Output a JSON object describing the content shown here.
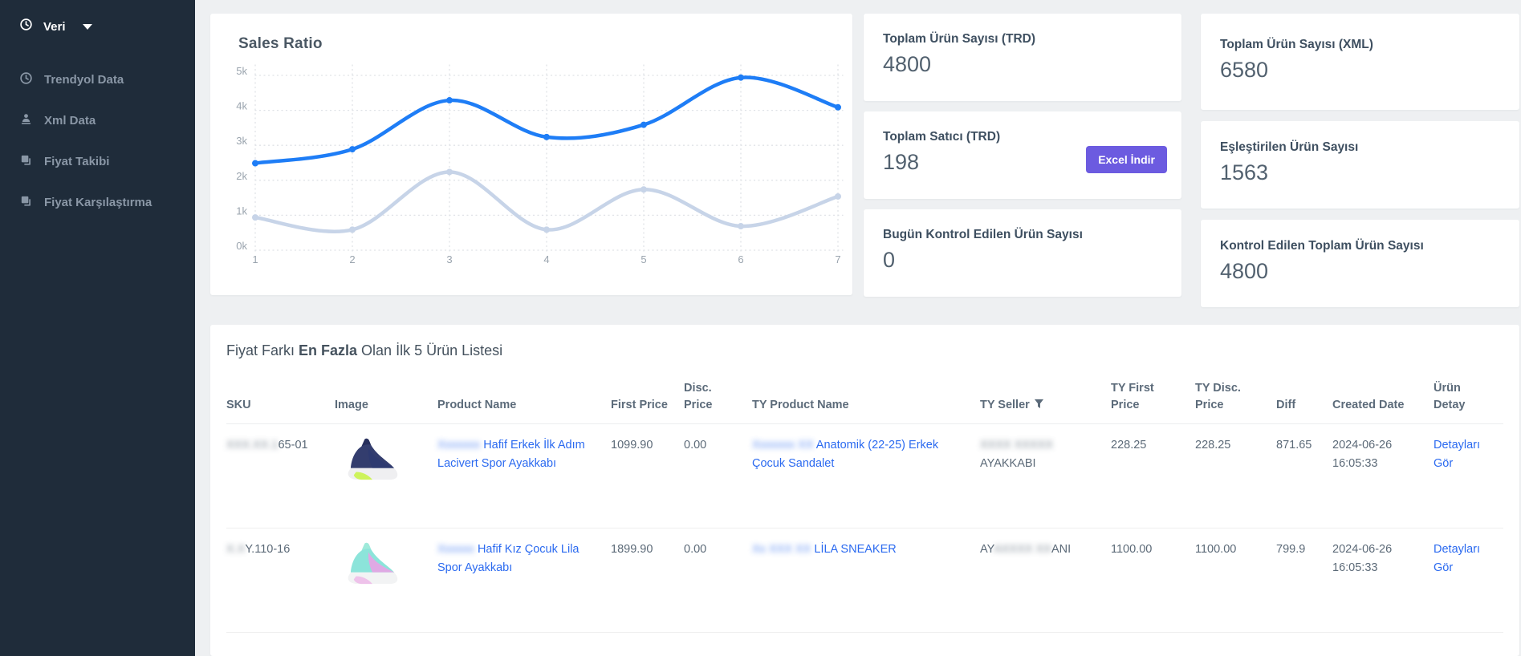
{
  "colors": {
    "sidebar_bg": "#1f2c3a",
    "accent_button": "#6c5be0",
    "link": "#2b6af0",
    "chart_line_primary": "#1e7df6",
    "chart_line_secondary": "#c7d4e8"
  },
  "sidebar": {
    "header_label": "Veri",
    "items": [
      {
        "label": "Trendyol Data",
        "icon": "clock-icon"
      },
      {
        "label": "Xml Data",
        "icon": "user-icon"
      },
      {
        "label": "Fiyat Takibi",
        "icon": "copy-icon"
      },
      {
        "label": "Fiyat Karşılaştırma",
        "icon": "copy-icon"
      }
    ]
  },
  "chart_data": {
    "type": "line",
    "title": "Sales Ratio",
    "x": [
      1,
      2,
      3,
      4,
      5,
      6,
      7
    ],
    "xlabel": "",
    "ylabel": "",
    "ylim": [
      0,
      5000
    ],
    "ytick_labels": [
      "0k",
      "1k",
      "2k",
      "3k",
      "4k",
      "5k"
    ],
    "grid": "dotted",
    "legend": "none",
    "series": [
      {
        "name": "series-1",
        "color": "#1e7df6",
        "values": [
          2350,
          2750,
          4150,
          3100,
          3450,
          4800,
          3950
        ]
      },
      {
        "name": "series-2",
        "color": "#c7d4e8",
        "values": [
          800,
          450,
          2100,
          450,
          1600,
          550,
          1400
        ]
      }
    ]
  },
  "stats": [
    {
      "label": "Toplam Ürün Sayısı (TRD)",
      "value": "4800"
    },
    {
      "label": "Toplam Ürün Sayısı (XML)",
      "value": "6580"
    },
    {
      "label": "Toplam Satıcı (TRD)",
      "value": "198",
      "button_label": "Excel İndir"
    },
    {
      "label": "Eşleştirilen Ürün Sayısı",
      "value": "1563"
    },
    {
      "label": "Bugün Kontrol Edilen Ürün Sayısı",
      "value": "0"
    },
    {
      "label": "Kontrol Edilen Toplam Ürün Sayısı",
      "value": "4800"
    }
  ],
  "table": {
    "title_prefix": "Fiyat Farkı ",
    "title_bold": "En Fazla",
    "title_suffix": " Olan İlk 5 Ürün Listesi",
    "columns": [
      {
        "label": "SKU"
      },
      {
        "label": "Image"
      },
      {
        "label": "Product Name"
      },
      {
        "label": "First Price"
      },
      {
        "label": "Disc. Price"
      },
      {
        "label": "TY Product Name"
      },
      {
        "label": "TY Seller",
        "filter": true
      },
      {
        "label": "TY First Price"
      },
      {
        "label": "TY Disc. Price"
      },
      {
        "label": "Diff"
      },
      {
        "label": "Created Date"
      },
      {
        "label": "Ürün Detay"
      }
    ],
    "rows": [
      {
        "sku": [
          {
            "text": "XXX.XX.1",
            "redacted": true
          },
          {
            "text": "65-01",
            "redacted": false
          }
        ],
        "image_colors": {
          "upper": "#333d6e",
          "upper2": "#2e3a70",
          "collar": "#272f5c",
          "sole": "#efeff1",
          "accent": "#cdf35c"
        },
        "product_name": [
          {
            "text": "Xxxxxxx ",
            "redacted": true
          },
          {
            "text": "Hafif Erkek İlk Adım Lacivert Spor Ayakkabı",
            "redacted": false
          }
        ],
        "first_price": "1099.90",
        "disc_price": "0.00",
        "ty_product_name": [
          {
            "text": "Xxxxxxx XX ",
            "redacted": true
          },
          {
            "text": "Anatomik (22-25) Erkek Çocuk Sandalet",
            "redacted": false
          }
        ],
        "ty_seller": [
          {
            "text": "XXXX XXXXX ",
            "redacted": true
          },
          {
            "text": "AYAKKABI",
            "redacted": false
          }
        ],
        "ty_first_price": "228.25",
        "ty_disc_price": "228.25",
        "diff": "871.65",
        "created_date": "2024-06-26 16:05:33",
        "detail_label": "Detayları Gör"
      },
      {
        "sku": [
          {
            "text": "X.X",
            "redacted": true
          },
          {
            "text": "Y.110-16",
            "redacted": false
          }
        ],
        "image_colors": {
          "upper": "#8ce4da",
          "upper2": "#dfa9e4",
          "collar": "#9feada",
          "sole": "#f2f3f4",
          "accent": "#eec2ea"
        },
        "product_name": [
          {
            "text": "Xxxxxx ",
            "redacted": true
          },
          {
            "text": "Hafif Kız Çocuk Lila Spor Ayakkabı",
            "redacted": false
          }
        ],
        "first_price": "1899.90",
        "disc_price": "0.00",
        "ty_product_name": [
          {
            "text": "Xx XXX XX ",
            "redacted": true
          },
          {
            "text": "LİLA SNEAKER",
            "redacted": false
          }
        ],
        "ty_seller": [
          {
            "text": "AY",
            "redacted": false
          },
          {
            "text": "AXXXX XX",
            "redacted": true
          },
          {
            "text": "ANI",
            "redacted": false
          }
        ],
        "ty_first_price": "1100.00",
        "ty_disc_price": "1100.00",
        "diff": "799.9",
        "created_date": "2024-06-26 16:05:33",
        "detail_label": "Detayları Gör"
      }
    ]
  }
}
